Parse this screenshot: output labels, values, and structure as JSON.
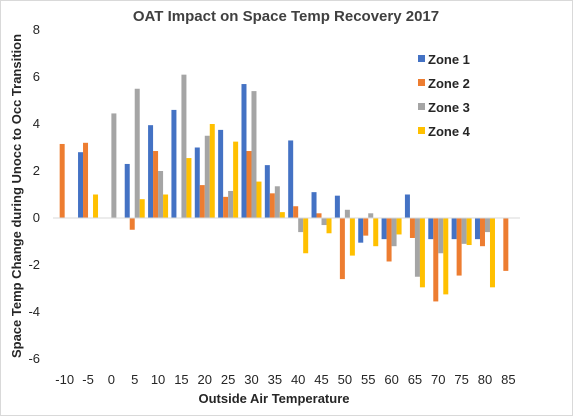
{
  "chart_data": {
    "type": "bar",
    "title": "OAT Impact on Space Temp Recovery 2017",
    "xlabel": "Outside Air Temperature",
    "ylabel": "Space Temp Change during Unocc to Occ Transition",
    "ylim": [
      -6,
      8
    ],
    "yticks": [
      -6,
      -4,
      -2,
      0,
      2,
      4,
      6,
      8
    ],
    "grid": false,
    "legend_position": "right",
    "categories": [
      "-10",
      "-5",
      "0",
      "5",
      "10",
      "15",
      "20",
      "25",
      "30",
      "35",
      "40",
      "45",
      "50",
      "55",
      "60",
      "65",
      "70",
      "75",
      "80",
      "85"
    ],
    "series": [
      {
        "name": "Zone 1",
        "color": "#4472c4",
        "values": [
          null,
          2.8,
          null,
          2.3,
          3.95,
          4.6,
          3.0,
          3.75,
          5.7,
          2.25,
          3.3,
          1.1,
          0.95,
          -1.05,
          -0.9,
          1.0,
          -0.9,
          -0.9,
          -0.9,
          null
        ]
      },
      {
        "name": "Zone 2",
        "color": "#ed7d31",
        "values": [
          3.15,
          3.2,
          null,
          -0.5,
          2.85,
          null,
          1.4,
          0.9,
          2.85,
          1.05,
          0.5,
          0.2,
          -2.6,
          -0.75,
          -1.85,
          -0.85,
          -3.55,
          -2.45,
          -1.2,
          -2.25
        ]
      },
      {
        "name": "Zone 3",
        "color": "#a5a5a5",
        "values": [
          null,
          null,
          4.45,
          5.5,
          2.0,
          6.1,
          3.5,
          1.15,
          5.4,
          1.35,
          -0.6,
          -0.3,
          0.35,
          0.2,
          -1.2,
          -2.5,
          -1.5,
          -1.1,
          -0.6,
          null
        ]
      },
      {
        "name": "Zone 4",
        "color": "#ffc000",
        "values": [
          null,
          1.0,
          null,
          0.8,
          1.0,
          2.55,
          4.0,
          3.25,
          1.55,
          0.25,
          -1.5,
          -0.65,
          -1.6,
          -1.2,
          -0.7,
          -2.95,
          -3.25,
          -1.15,
          -2.95,
          null
        ]
      }
    ]
  }
}
